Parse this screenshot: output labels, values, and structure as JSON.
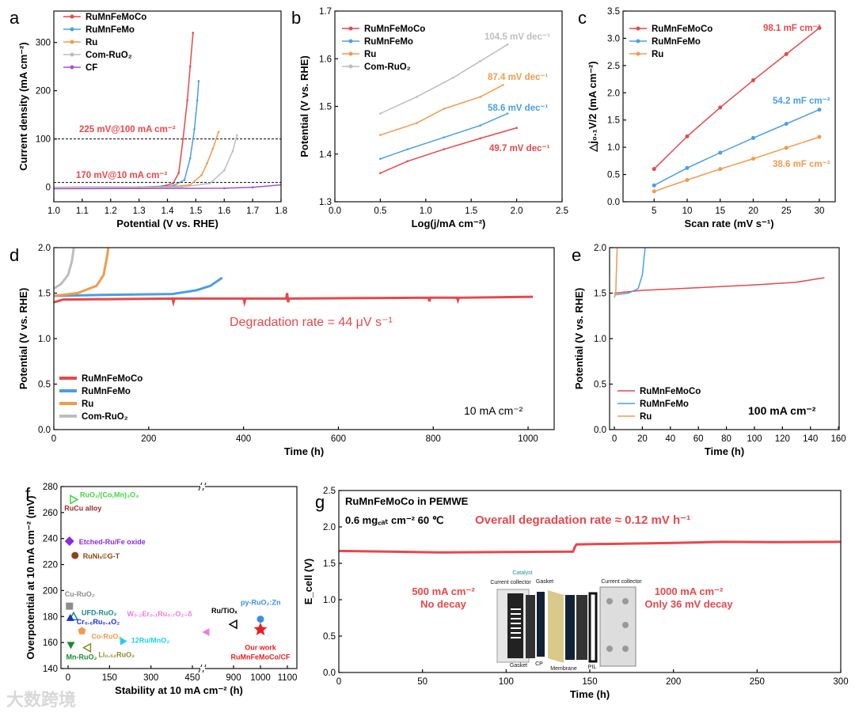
{
  "watermark": "大数跨境",
  "chart_data": [
    {
      "panel": "a",
      "type": "line",
      "xlabel": "Potential (V vs. RHE)",
      "ylabel": "Current density (mA cm⁻²)",
      "xlim": [
        1.0,
        1.8
      ],
      "ylim": [
        -30,
        365
      ],
      "xticks": [
        1.0,
        1.1,
        1.2,
        1.3,
        1.4,
        1.5,
        1.6,
        1.7,
        1.8
      ],
      "yticks": [
        0,
        100,
        200,
        300
      ],
      "xdec": 1,
      "ydec": 0,
      "hlines": [
        100,
        10
      ],
      "series": [
        {
          "name": "RuMnFeMoCo",
          "color": "#e8474a",
          "points": [
            [
              1.0,
              0
            ],
            [
              1.3,
              0.5
            ],
            [
              1.38,
              2
            ],
            [
              1.42,
              8
            ],
            [
              1.44,
              30
            ],
            [
              1.455,
              100
            ],
            [
              1.47,
              180
            ],
            [
              1.48,
              250
            ],
            [
              1.49,
              320
            ]
          ]
        },
        {
          "name": "RuMnFeMo",
          "color": "#4a9fe0",
          "points": [
            [
              1.0,
              0
            ],
            [
              1.35,
              0.5
            ],
            [
              1.42,
              3
            ],
            [
              1.46,
              15
            ],
            [
              1.48,
              60
            ],
            [
              1.495,
              120
            ],
            [
              1.505,
              180
            ],
            [
              1.51,
              220
            ]
          ]
        },
        {
          "name": "Ru",
          "color": "#f39a4a",
          "points": [
            [
              1.0,
              0
            ],
            [
              1.4,
              0.5
            ],
            [
              1.48,
              5
            ],
            [
              1.52,
              25
            ],
            [
              1.54,
              50
            ],
            [
              1.56,
              80
            ],
            [
              1.58,
              115
            ]
          ]
        },
        {
          "name": "Com-RuO₂",
          "color": "#bdbdbd",
          "points": [
            [
              1.0,
              0
            ],
            [
              1.45,
              0.5
            ],
            [
              1.55,
              8
            ],
            [
              1.6,
              35
            ],
            [
              1.63,
              75
            ],
            [
              1.645,
              108
            ]
          ]
        },
        {
          "name": "CF",
          "color": "#a050e0",
          "points": [
            [
              1.0,
              -3
            ],
            [
              1.6,
              -2
            ],
            [
              1.7,
              0
            ],
            [
              1.8,
              5
            ]
          ]
        }
      ],
      "annotations": [
        {
          "text": "225 mV@100 mA cm⁻²",
          "color": "#e8474a"
        },
        {
          "text": "170 mV@10 mA cm⁻²",
          "color": "#e8474a"
        }
      ]
    },
    {
      "panel": "b",
      "type": "line",
      "xlabel": "Log(j/mA cm⁻²)",
      "ylabel": "Potential (V vs. RHE)",
      "xlim": [
        0,
        2.5
      ],
      "ylim": [
        1.3,
        1.7
      ],
      "xticks": [
        0.0,
        0.5,
        1.0,
        1.5,
        2.0,
        2.5
      ],
      "yticks": [
        1.3,
        1.4,
        1.5,
        1.6,
        1.7
      ],
      "xdec": 1,
      "ydec": 1,
      "series": [
        {
          "name": "RuMnFeMoCo",
          "color": "#e8474a",
          "points": [
            [
              0.5,
              1.36
            ],
            [
              0.8,
              1.385
            ],
            [
              1.2,
              1.41
            ],
            [
              1.6,
              1.433
            ],
            [
              2.0,
              1.455
            ]
          ]
        },
        {
          "name": "RuMnFeMo",
          "color": "#4a9fe0",
          "points": [
            [
              0.5,
              1.39
            ],
            [
              0.8,
              1.41
            ],
            [
              1.2,
              1.435
            ],
            [
              1.6,
              1.46
            ],
            [
              1.9,
              1.485
            ]
          ]
        },
        {
          "name": "Ru",
          "color": "#f39a4a",
          "points": [
            [
              0.5,
              1.44
            ],
            [
              0.9,
              1.465
            ],
            [
              1.2,
              1.495
            ],
            [
              1.6,
              1.52
            ],
            [
              1.85,
              1.545
            ]
          ]
        },
        {
          "name": "Com-RuO₂",
          "color": "#bdbdbd",
          "points": [
            [
              0.5,
              1.485
            ],
            [
              0.9,
              1.52
            ],
            [
              1.3,
              1.56
            ],
            [
              1.6,
              1.595
            ],
            [
              1.9,
              1.63
            ]
          ]
        }
      ],
      "annotations": [
        {
          "text": "104.5 mV dec⁻¹",
          "color": "#bdbdbd"
        },
        {
          "text": "87.4 mV dec⁻¹",
          "color": "#f39a4a"
        },
        {
          "text": "58.6 mV dec⁻¹",
          "color": "#4a9fe0"
        },
        {
          "text": "49.7 mV dec⁻¹",
          "color": "#e8474a"
        }
      ]
    },
    {
      "panel": "c",
      "type": "line",
      "xlabel": "Scan rate (mV s⁻¹)",
      "ylabel": "△j₀.₁V/2 (mA cm⁻²)",
      "xlim": [
        0.3,
        32.4
      ],
      "ylim": [
        0,
        3.5
      ],
      "xticks": [
        5,
        10,
        15,
        20,
        25,
        30
      ],
      "yticks": [
        0,
        0.5,
        1.0,
        1.5,
        2.0,
        2.5,
        3.0,
        3.5
      ],
      "xdec": 0,
      "ydec": 1,
      "markers": true,
      "series": [
        {
          "name": "RuMnFeMoCo",
          "color": "#e8474a",
          "points": [
            [
              5,
              0.6
            ],
            [
              10,
              1.2
            ],
            [
              15,
              1.73
            ],
            [
              20,
              2.23
            ],
            [
              25,
              2.71
            ],
            [
              30,
              3.19
            ]
          ]
        },
        {
          "name": "RuMnFeMo",
          "color": "#4a9fe0",
          "points": [
            [
              5,
              0.3
            ],
            [
              10,
              0.62
            ],
            [
              15,
              0.9
            ],
            [
              20,
              1.17
            ],
            [
              25,
              1.43
            ],
            [
              30,
              1.69
            ]
          ]
        },
        {
          "name": "Ru",
          "color": "#f39a4a",
          "points": [
            [
              5,
              0.19
            ],
            [
              10,
              0.4
            ],
            [
              15,
              0.6
            ],
            [
              20,
              0.79
            ],
            [
              25,
              0.99
            ],
            [
              30,
              1.19
            ]
          ]
        }
      ],
      "annotations": [
        {
          "text": "98.1 mF cm⁻²",
          "color": "#e8474a"
        },
        {
          "text": "54.2 mF cm⁻²",
          "color": "#4a9fe0"
        },
        {
          "text": "38.6 mF cm⁻²",
          "color": "#f39a4a"
        }
      ]
    },
    {
      "panel": "d",
      "type": "line",
      "xlabel": "Time (h)",
      "ylabel": "Potential (V vs. RHE)",
      "xlim": [
        0,
        1055
      ],
      "ylim": [
        0,
        2.0
      ],
      "xticks": [
        0,
        200,
        400,
        600,
        800,
        1000
      ],
      "yticks": [
        0,
        0.5,
        1.0,
        1.5,
        2.0
      ],
      "xdec": 0,
      "ydec": 1,
      "thick": true,
      "series": [
        {
          "name": "RuMnFeMoCo",
          "color": "#e8474a",
          "points": [
            [
              0,
              1.4
            ],
            [
              20,
              1.43
            ],
            [
              250,
              1.44
            ],
            [
              252,
              1.4
            ],
            [
              254,
              1.44
            ],
            [
              400,
              1.44
            ],
            [
              402,
              1.4
            ],
            [
              404,
              1.44
            ],
            [
              490,
              1.44
            ],
            [
              492,
              1.5
            ],
            [
              494,
              1.4
            ],
            [
              496,
              1.44
            ],
            [
              790,
              1.45
            ],
            [
              792,
              1.41
            ],
            [
              794,
              1.45
            ],
            [
              850,
              1.45
            ],
            [
              852,
              1.42
            ],
            [
              854,
              1.45
            ],
            [
              1010,
              1.46
            ]
          ]
        },
        {
          "name": "RuMnFeMo",
          "color": "#4a9fe0",
          "points": [
            [
              0,
              1.47
            ],
            [
              100,
              1.48
            ],
            [
              250,
              1.49
            ],
            [
              300,
              1.53
            ],
            [
              330,
              1.58
            ],
            [
              355,
              1.67
            ]
          ]
        },
        {
          "name": "Ru",
          "color": "#f39a4a",
          "points": [
            [
              0,
              1.47
            ],
            [
              50,
              1.5
            ],
            [
              90,
              1.58
            ],
            [
              105,
              1.7
            ],
            [
              112,
              1.9
            ],
            [
              115,
              2.0
            ]
          ]
        },
        {
          "name": "Com-RuO₂",
          "color": "#bdbdbd",
          "points": [
            [
              0,
              1.55
            ],
            [
              15,
              1.6
            ],
            [
              30,
              1.7
            ],
            [
              38,
              1.85
            ],
            [
              42,
              2.0
            ]
          ]
        }
      ],
      "annotations": [
        {
          "text": "Degradation rate = 44 μV s⁻¹",
          "color": "#e8474a"
        },
        {
          "text": "10 mA cm⁻²",
          "color": "#000000"
        }
      ]
    },
    {
      "panel": "e",
      "type": "line",
      "xlabel": "Time (h)",
      "ylabel": "Potential (V vs. RHE)",
      "xlim": [
        -3.4,
        160.5
      ],
      "ylim": [
        0,
        2.0
      ],
      "xticks": [
        0,
        20,
        40,
        60,
        80,
        100,
        120,
        140,
        160
      ],
      "yticks": [
        0,
        0.5,
        1.0,
        1.5,
        2.0
      ],
      "xdec": 0,
      "ydec": 1,
      "series": [
        {
          "name": "RuMnFeMoCo",
          "color": "#e8474a",
          "points": [
            [
              0,
              1.5
            ],
            [
              20,
              1.53
            ],
            [
              60,
              1.56
            ],
            [
              100,
              1.59
            ],
            [
              130,
              1.62
            ],
            [
              150,
              1.67
            ]
          ]
        },
        {
          "name": "RuMnFeMo",
          "color": "#4a9fe0",
          "points": [
            [
              0,
              1.48
            ],
            [
              10,
              1.5
            ],
            [
              17,
              1.55
            ],
            [
              20,
              1.7
            ],
            [
              22,
              2.0
            ]
          ]
        },
        {
          "name": "Ru",
          "color": "#f39a4a",
          "points": [
            [
              0,
              1.45
            ],
            [
              1,
              1.5
            ],
            [
              1.6,
              1.8
            ],
            [
              2,
              2.0
            ]
          ]
        }
      ],
      "annotations": [
        {
          "text": "100 mA cm⁻²",
          "color": "#000000"
        }
      ]
    },
    {
      "panel": "f",
      "type": "scatter",
      "xlabel": "Stability at 10 mA cm⁻² (h)",
      "ylabel": "Overpotential at 10 mA cm⁻² (mV)",
      "xlim": [
        -25,
        1110
      ],
      "ylim": [
        140,
        280
      ],
      "xbreak": [
        600,
        900
      ],
      "xticks": [
        0,
        150,
        300,
        450,
        900,
        1000,
        1100
      ],
      "yticks": [
        140,
        160,
        180,
        200,
        220,
        240,
        260,
        280
      ],
      "xdec": 0,
      "ydec": 0,
      "points": [
        {
          "label": "RuO₂/(Co,Mn)₃O₄",
          "x": 20,
          "y": 270,
          "color": "#3fd63f",
          "marker": "tri-right-open"
        },
        {
          "label": "RuCu alloy",
          "x": 15,
          "y": 270,
          "color": "#9b2b2b",
          "marker": "none"
        },
        {
          "label": "Etched-Ru/Fe oxide",
          "x": 5,
          "y": 238,
          "color": "#8a2be2",
          "marker": "diamond"
        },
        {
          "label": "RuNiₓ©G-T",
          "x": 25,
          "y": 227,
          "color": "#8b4513",
          "marker": "circle"
        },
        {
          "label": "Cu-RuO₂",
          "x": 5,
          "y": 188,
          "color": "#8c8c8c",
          "marker": "square"
        },
        {
          "label": "UFD-RuO₂",
          "x": 20,
          "y": 180,
          "color": "#1a8a8a",
          "marker": "tri-up-open"
        },
        {
          "label": "Cr₀.₆Ru₀.₄O₂",
          "x": 8,
          "y": 179,
          "color": "#1c2fd0",
          "marker": "tri-up"
        },
        {
          "label": "Co-RuO₂",
          "x": 50,
          "y": 169,
          "color": "#f39a4a",
          "marker": "pentagon"
        },
        {
          "label": "12Ru/MnO₂",
          "x": 200,
          "y": 161,
          "color": "#19d4e8",
          "marker": "tri-right"
        },
        {
          "label": "Li₀.₅₂RuO₂",
          "x": 70,
          "y": 156,
          "color": "#8a8a2a",
          "marker": "tri-left-open"
        },
        {
          "label": "Mn-RuO₂",
          "x": 10,
          "y": 158,
          "color": "#1a8a2a",
          "marker": "tri-down"
        },
        {
          "label": "W₀.₂Er₀.₁Ru₀.₇O₂₋δ",
          "x": 500,
          "y": 168,
          "color": "#f07ae0",
          "marker": "tri-left"
        },
        {
          "label": "Ru/TiOₓ",
          "x": 900,
          "y": 174,
          "color": "#000000",
          "marker": "tri-left-open"
        },
        {
          "label": "py-RuO₂:Zn",
          "x": 1000,
          "y": 178,
          "color": "#3a8fe0",
          "marker": "circle"
        },
        {
          "label": "Our work\nRuMnFeMoCo/CF",
          "x": 1000,
          "y": 170,
          "color": "#e82020",
          "marker": "star"
        }
      ]
    },
    {
      "panel": "g",
      "type": "line",
      "xlabel": "Time (h)",
      "ylabel": "E_cell (V)",
      "xlim": [
        0,
        300
      ],
      "ylim": [
        0,
        2.5
      ],
      "xticks": [
        0,
        50,
        100,
        150,
        200,
        250,
        300
      ],
      "yticks": [
        0,
        0.5,
        1.0,
        1.5,
        2.0,
        2.5
      ],
      "xdec": 0,
      "ydec": 1,
      "thick": true,
      "series": [
        {
          "name": "RuMnFeMoCo",
          "color": "#e8474a",
          "points": [
            [
              0,
              1.67
            ],
            [
              60,
              1.65
            ],
            [
              140,
              1.66
            ],
            [
              141,
              1.72
            ],
            [
              142,
              1.76
            ],
            [
              200,
              1.78
            ],
            [
              230,
              1.795
            ],
            [
              260,
              1.79
            ],
            [
              300,
              1.795
            ]
          ]
        }
      ],
      "annotations": [
        {
          "text": "RuMnFeMoCo in PEMWE",
          "color": "#000000"
        },
        {
          "text": "0.6 mg꜀ₐₜ cm⁻² 60 ℃",
          "color": "#000000"
        },
        {
          "text": "Overall degradation rate ≈ 0.12 mV h⁻¹",
          "color": "#e8474a"
        },
        {
          "text": "500 mA cm⁻²",
          "color": "#e8474a"
        },
        {
          "text": "No decay",
          "color": "#e8474a"
        },
        {
          "text": "1000 mA cm⁻²",
          "color": "#e8474a"
        },
        {
          "text": "Only 36 mV decay",
          "color": "#e8474a"
        }
      ],
      "inset_labels": [
        "Current collector",
        "Catalyst",
        "Gasket",
        "Current collector",
        "Gasket",
        "CP",
        "Membrane",
        "PIL"
      ]
    }
  ]
}
